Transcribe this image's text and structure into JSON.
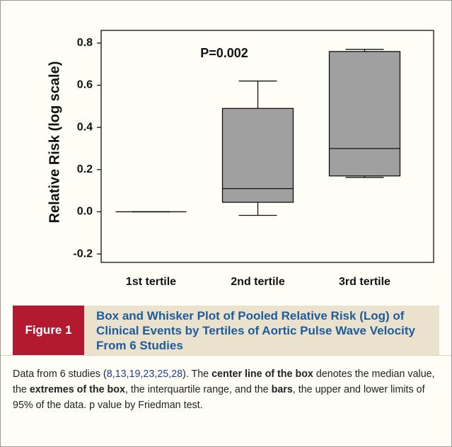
{
  "chart_data": {
    "type": "box",
    "annotation": "P=0.002",
    "y_label": "Relative Risk (log scale)",
    "categories": [
      "1st tertile",
      "2nd tertile",
      "3rd tertile"
    ],
    "boxes": [
      {
        "min": 0,
        "q1": 0,
        "median": 0,
        "q3": 0,
        "max": 0
      },
      {
        "min": -0.017,
        "q1": 0.045,
        "median": 0.11,
        "q3": 0.49,
        "max": 0.62
      },
      {
        "min": 0.163,
        "q1": 0.17,
        "median": 0.3,
        "q3": 0.76,
        "max": 0.77
      }
    ],
    "color": "#a0a0a0",
    "ylim": [
      -0.24,
      0.86
    ],
    "yticks": [
      -0.2,
      {
        "value": 0,
        "label": "0.0"
      },
      0.2,
      0.4,
      0.6,
      0.8
    ]
  },
  "figure": {
    "label": "Figure 1",
    "title": "Box and Whisker Plot of Pooled Relative Risk (Log) of Clinical Events by Tertiles of Aortic Pulse Wave Velocity From 6 Studies"
  },
  "caption": [
    {
      "text": "Data from 6 studies ("
    },
    {
      "text": "8,13,19,23,25,28",
      "style": "link"
    },
    {
      "text": "). The "
    },
    {
      "text": "center line of the box",
      "style": "bold"
    },
    {
      "text": " denotes the median value, the "
    },
    {
      "text": "extremes of the box",
      "style": "bold"
    },
    {
      "text": ", the interquartile range, and the "
    },
    {
      "text": "bars",
      "style": "bold"
    },
    {
      "text": ", the upper and lower limits of 95% of the data. p value by Friedman test."
    }
  ]
}
